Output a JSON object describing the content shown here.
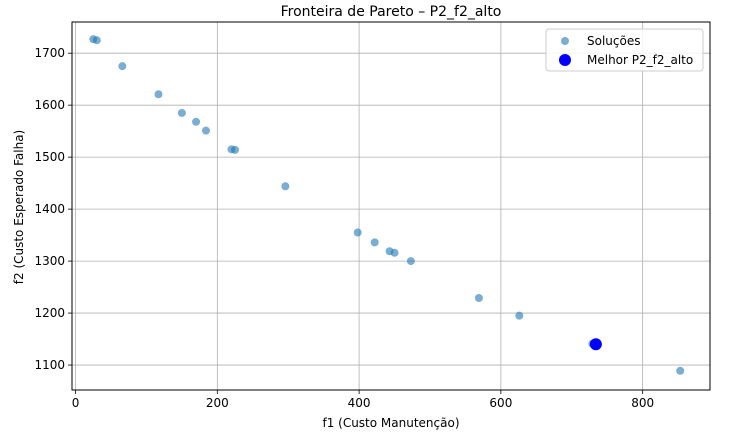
{
  "chart_data": {
    "type": "scatter",
    "title": "Fronteira de Pareto – P2_f2_alto",
    "xlabel": "f1 (Custo Manutenção)",
    "ylabel": "f2 (Custo Esperado Falha)",
    "xlim": [
      -5,
      895
    ],
    "ylim": [
      1052,
      1760
    ],
    "xticks": [
      0,
      200,
      400,
      600,
      800
    ],
    "yticks": [
      1100,
      1200,
      1300,
      1400,
      1500,
      1600,
      1700
    ],
    "grid": true,
    "legend_position": "upper right",
    "series": [
      {
        "name": "Soluções",
        "color": "#1f77b4",
        "alpha": 0.6,
        "points": [
          {
            "x": 25,
            "y": 1727
          },
          {
            "x": 30,
            "y": 1725
          },
          {
            "x": 66,
            "y": 1675
          },
          {
            "x": 117,
            "y": 1621
          },
          {
            "x": 150,
            "y": 1585
          },
          {
            "x": 170,
            "y": 1568
          },
          {
            "x": 184,
            "y": 1551
          },
          {
            "x": 220,
            "y": 1515
          },
          {
            "x": 225,
            "y": 1514
          },
          {
            "x": 296,
            "y": 1444
          },
          {
            "x": 398,
            "y": 1355
          },
          {
            "x": 422,
            "y": 1336
          },
          {
            "x": 443,
            "y": 1319
          },
          {
            "x": 450,
            "y": 1316
          },
          {
            "x": 473,
            "y": 1300
          },
          {
            "x": 569,
            "y": 1229
          },
          {
            "x": 626,
            "y": 1195
          },
          {
            "x": 729,
            "y": 1141
          },
          {
            "x": 853,
            "y": 1089
          }
        ]
      },
      {
        "name": "Melhor P2_f2_alto",
        "color": "#0000ff",
        "alpha": 1.0,
        "points": [
          {
            "x": 734,
            "y": 1140
          }
        ]
      }
    ]
  }
}
